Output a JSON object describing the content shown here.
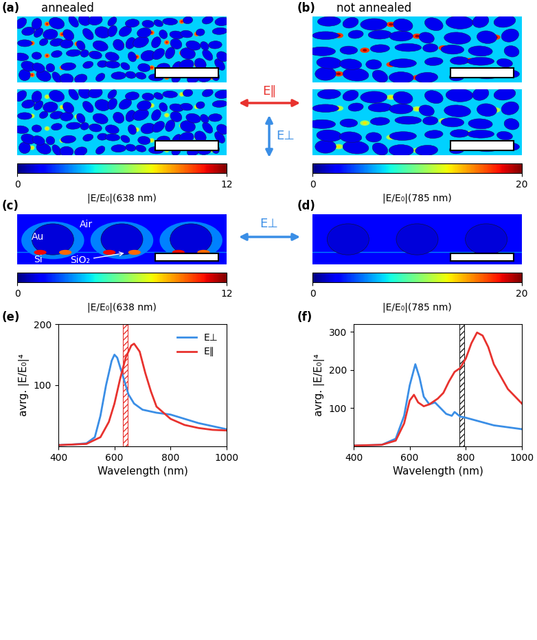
{
  "panel_labels": [
    "(a)",
    "(b)",
    "(c)",
    "(d)",
    "(e)",
    "(f)"
  ],
  "top_titles": [
    "annealed",
    "not annealed"
  ],
  "polarization": {
    "parallel": {
      "label": "E∥",
      "color": "#e8322e"
    },
    "perpendicular": {
      "label": "E⊥",
      "color": "#3a8ee6"
    }
  },
  "colorbars": [
    {
      "label": "|E/E₀|(638 nm)",
      "range": [
        0,
        12
      ],
      "ticks": [
        0,
        12
      ]
    },
    {
      "label": "|E/E₀|(785 nm)",
      "range": [
        0,
        20
      ],
      "ticks": [
        0,
        20
      ]
    }
  ],
  "cross_section_labels": {
    "air": "Air",
    "metal": "Au",
    "substrate": "Si",
    "oxide": "SiO₂"
  },
  "chart_data": [
    {
      "type": "line",
      "x_label": "Wavelength (nm)",
      "y_label": "avrg. |E/E₀|⁴",
      "xlim": [
        400,
        1000
      ],
      "xticks": [
        400,
        600,
        800,
        1000
      ],
      "ylim": [
        0,
        200
      ],
      "yticks": [
        100,
        200
      ],
      "legend": "upper right",
      "laser_line": {
        "x": 638,
        "color": "#e8322e"
      },
      "series": [
        {
          "name": "E⊥",
          "color": "#3a8ee6",
          "x": [
            400,
            450,
            500,
            530,
            550,
            570,
            590,
            600,
            610,
            630,
            650,
            670,
            700,
            750,
            800,
            850,
            900,
            950,
            1000
          ],
          "values": [
            2,
            3,
            5,
            15,
            50,
            100,
            140,
            150,
            145,
            115,
            85,
            70,
            60,
            55,
            52,
            45,
            38,
            33,
            28
          ]
        },
        {
          "name": "E∥",
          "color": "#e8322e",
          "x": [
            400,
            500,
            550,
            580,
            600,
            620,
            640,
            660,
            670,
            690,
            710,
            730,
            750,
            800,
            850,
            900,
            950,
            1000
          ],
          "values": [
            2,
            4,
            15,
            40,
            70,
            110,
            145,
            165,
            168,
            155,
            120,
            90,
            65,
            45,
            35,
            30,
            27,
            26
          ]
        }
      ]
    },
    {
      "type": "line",
      "x_label": "Wavelength (nm)",
      "y_label": "avrg. |E/E₀|⁴",
      "xlim": [
        400,
        1000
      ],
      "xticks": [
        400,
        600,
        800,
        1000
      ],
      "ylim": [
        0,
        320
      ],
      "yticks": [
        100,
        200,
        300
      ],
      "laser_line": {
        "x": 785,
        "color": "#222222"
      },
      "series": [
        {
          "color": "#3a8ee6",
          "x": [
            400,
            500,
            550,
            580,
            600,
            620,
            635,
            650,
            670,
            690,
            710,
            730,
            750,
            760,
            780,
            800,
            850,
            900,
            950,
            1000
          ],
          "values": [
            2,
            4,
            20,
            80,
            160,
            215,
            180,
            130,
            110,
            115,
            100,
            85,
            80,
            90,
            78,
            75,
            65,
            55,
            50,
            45
          ]
        },
        {
          "color": "#e8322e",
          "x": [
            400,
            500,
            550,
            580,
            600,
            615,
            630,
            650,
            670,
            700,
            720,
            740,
            760,
            780,
            800,
            820,
            840,
            860,
            880,
            900,
            950,
            1000
          ],
          "values": [
            2,
            4,
            15,
            60,
            120,
            135,
            115,
            105,
            110,
            125,
            140,
            170,
            195,
            205,
            230,
            270,
            298,
            290,
            260,
            215,
            150,
            112
          ]
        }
      ]
    }
  ]
}
